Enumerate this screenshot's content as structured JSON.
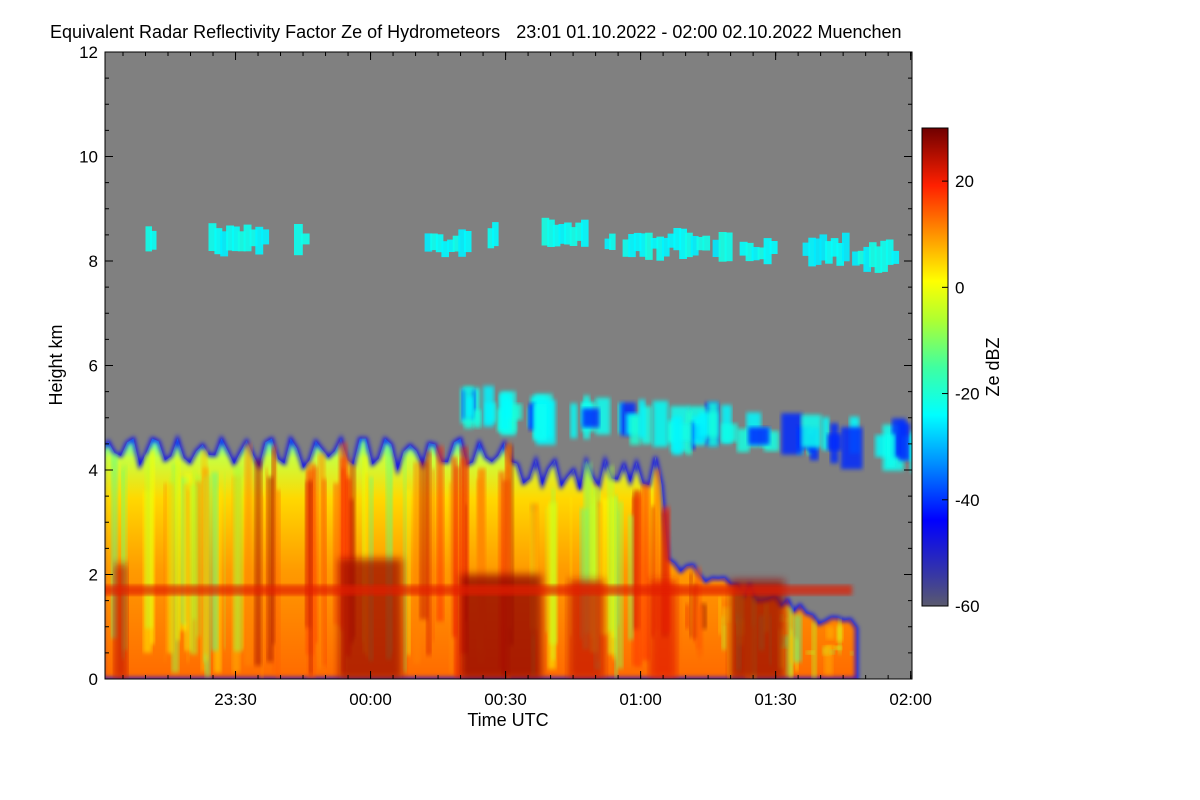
{
  "header": {
    "title": "Equivalent Radar Reflectivity Factor Ze of Hydrometeors",
    "period": "23:01 01.10.2022 - 02:00 02.10.2022 Muenchen"
  },
  "chart_data": {
    "type": "heatmap",
    "title": "Equivalent Radar Reflectivity Factor Ze of Hydrometeors",
    "xlabel": "Time UTC",
    "ylabel": "Height km",
    "x_range": [
      "23:01",
      "02:00"
    ],
    "ylim": [
      0,
      12
    ],
    "x_ticks": [
      "23:30",
      "00:00",
      "00:30",
      "01:00",
      "01:30",
      "02:00"
    ],
    "y_ticks": [
      0,
      2,
      4,
      6,
      8,
      10,
      12
    ],
    "colorbar": {
      "label": "Ze dBZ",
      "range": [
        -60,
        30
      ],
      "ticks": [
        20,
        0,
        -20,
        -40,
        -60
      ]
    },
    "background_color": "#808080",
    "features": [
      {
        "t_start": "23:01",
        "t_end": "01:48",
        "z_bottom": 0,
        "z_top": 4.6,
        "ze_range": [
          -40,
          30
        ]
      },
      {
        "t_start": "23:00",
        "t_end": "01:47",
        "z_bottom": 1.6,
        "z_top": 1.8,
        "ze_range": [
          10,
          30
        ]
      },
      {
        "t_start": "00:17",
        "t_end": "02:00",
        "z_bottom": 4.3,
        "z_top": 5.8,
        "ze_range": [
          -40,
          -20
        ]
      },
      {
        "t_start": "23:10",
        "t_end": "01:58",
        "z_bottom": 7.6,
        "z_top": 8.8,
        "ze_range": [
          -30,
          -20
        ]
      }
    ]
  }
}
